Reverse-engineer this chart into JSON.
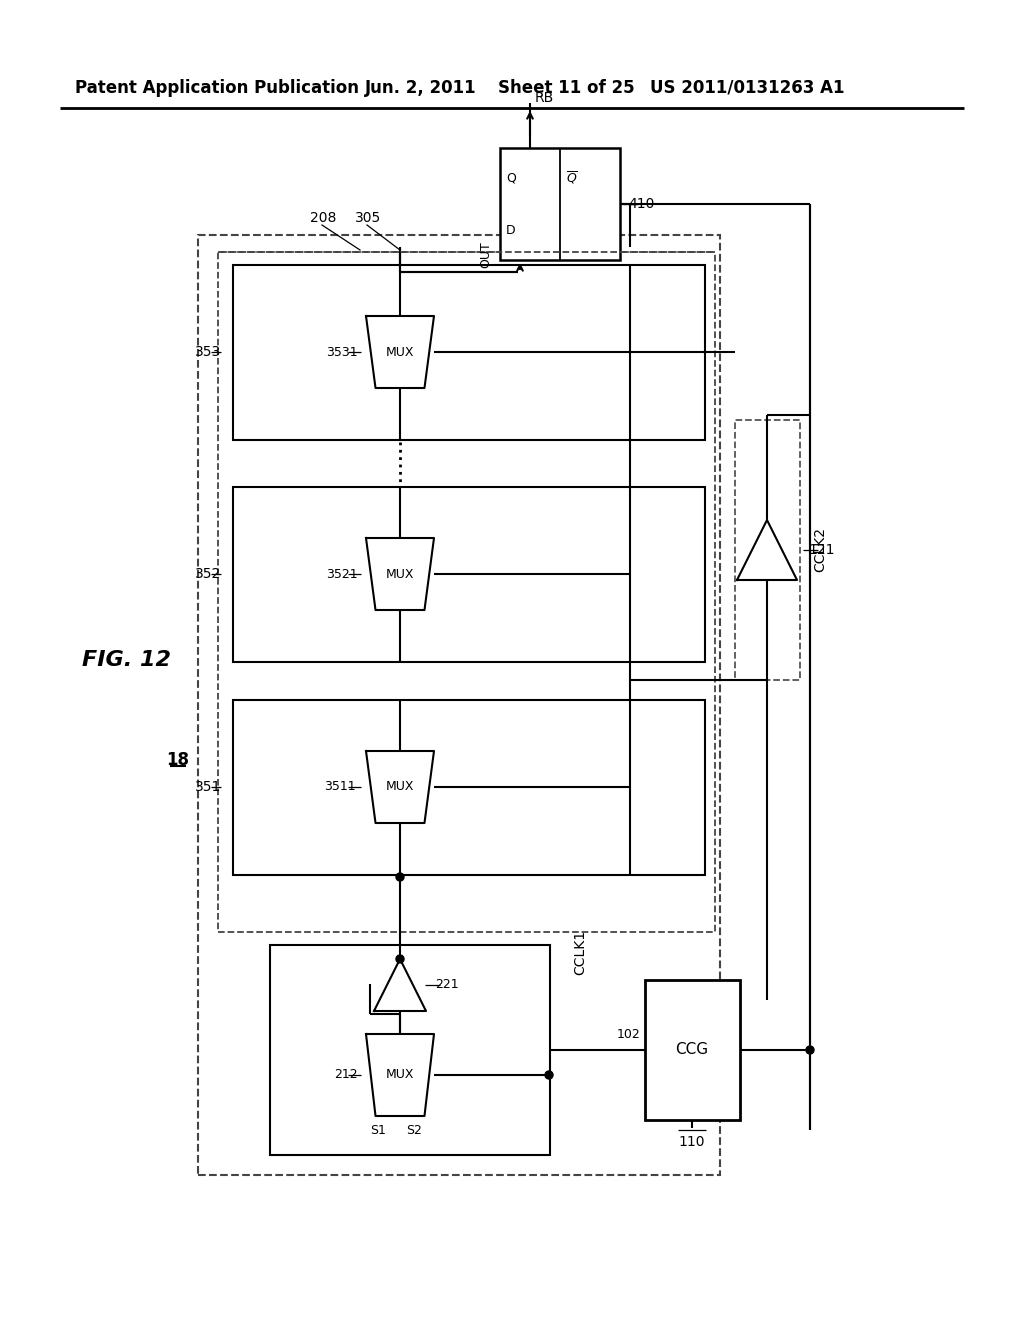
{
  "bg_color": "#ffffff",
  "header_text": "Patent Application Publication",
  "header_date": "Jun. 2, 2011",
  "header_sheet": "Sheet 11 of 25",
  "header_patent": "US 2011/0131263 A1"
}
